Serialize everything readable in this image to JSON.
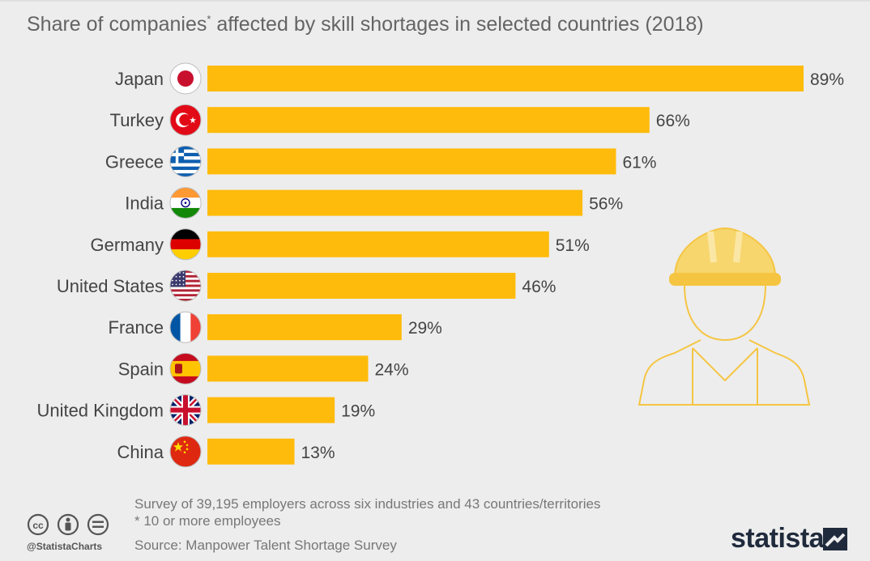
{
  "header": {
    "title_part1": "Share of companies",
    "title_mark": "*",
    "title_part2": " affected by skill shortages in selected countries (2018)"
  },
  "chart_data": {
    "type": "bar",
    "orientation": "horizontal",
    "categories": [
      "Japan",
      "Turkey",
      "Greece",
      "India",
      "Germany",
      "United States",
      "France",
      "Spain",
      "United Kingdom",
      "China"
    ],
    "values": [
      89,
      66,
      61,
      56,
      51,
      46,
      29,
      24,
      19,
      13
    ],
    "value_labels": [
      "89%",
      "66%",
      "61%",
      "56%",
      "51%",
      "46%",
      "29%",
      "24%",
      "19%",
      "13%"
    ],
    "flags": [
      "japan-flag-icon",
      "turkey-flag-icon",
      "greece-flag-icon",
      "india-flag-icon",
      "germany-flag-icon",
      "united-states-flag-icon",
      "france-flag-icon",
      "spain-flag-icon",
      "united-kingdom-flag-icon",
      "china-flag-icon"
    ],
    "xlim": [
      0,
      89
    ],
    "bar_color": "#ffbb0b",
    "grid": false
  },
  "footer": {
    "note1": "Survey of 39,195 employers across six industries and 43 countries/territories",
    "note2": "* 10 or more employees",
    "source": "Source: Manpower Talent Shortage Survey",
    "handle": "@StatistaCharts",
    "logo": "statista"
  },
  "colors": {
    "background": "#ededed",
    "bar": "#ffbb0b",
    "text": "#444444",
    "worker_outline": "#f5c542"
  }
}
